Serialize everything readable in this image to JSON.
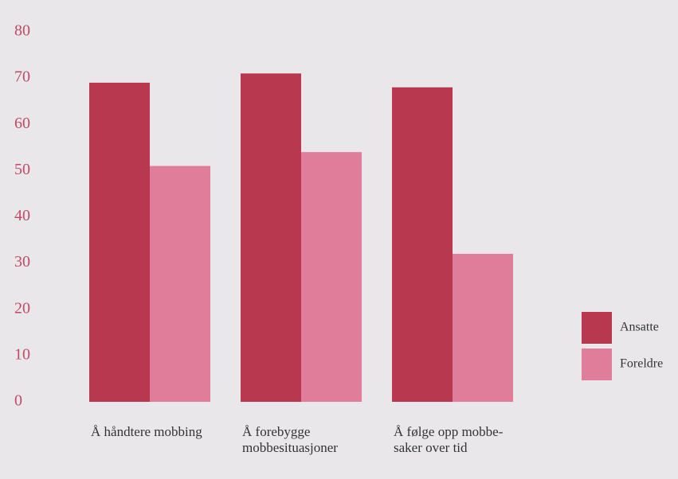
{
  "chart_data": {
    "type": "bar",
    "categories": [
      "Å håndtere mobbing",
      "Å forebygge mobbesituasjoner",
      "Å følge opp mobbe-saker over tid"
    ],
    "series": [
      {
        "name": "Ansatte",
        "color": "#b8394f",
        "values": [
          69,
          71,
          68
        ]
      },
      {
        "name": "Foreldre",
        "color": "#e07d9b",
        "values": [
          51,
          54,
          32
        ]
      }
    ],
    "ylim": [
      0,
      80
    ],
    "yticks": [
      0,
      10,
      20,
      30,
      40,
      50,
      60,
      70,
      80
    ],
    "grid": false,
    "legend": "right"
  }
}
